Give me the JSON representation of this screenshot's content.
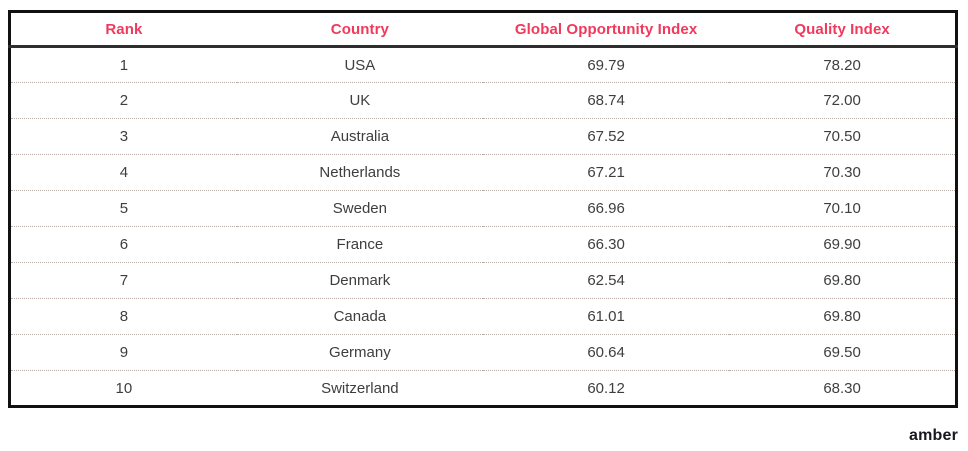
{
  "chart_data": {
    "type": "table",
    "title": "",
    "columns": [
      "Rank",
      "Country",
      "Global Opportunity Index",
      "Quality Index"
    ],
    "rows": [
      [
        "1",
        "USA",
        "69.79",
        "78.20"
      ],
      [
        "2",
        "UK",
        "68.74",
        "72.00"
      ],
      [
        "3",
        "Australia",
        "67.52",
        "70.50"
      ],
      [
        "4",
        "Netherlands",
        "67.21",
        "70.30"
      ],
      [
        "5",
        "Sweden",
        "66.96",
        "70.10"
      ],
      [
        "6",
        "France",
        "66.30",
        "69.90"
      ],
      [
        "7",
        "Denmark",
        "62.54",
        "69.80"
      ],
      [
        "8",
        "Canada",
        "61.01",
        "69.80"
      ],
      [
        "9",
        "Germany",
        "60.64",
        "69.50"
      ],
      [
        "10",
        "Switzerland",
        "60.12",
        "68.30"
      ]
    ]
  },
  "table": {
    "headers": [
      "Rank",
      "Country",
      "Global Opportunity Index",
      "Quality Index"
    ],
    "rows": [
      [
        "1",
        "USA",
        "69.79",
        "78.20"
      ],
      [
        "2",
        "UK",
        "68.74",
        "72.00"
      ],
      [
        "3",
        "Australia",
        "67.52",
        "70.50"
      ],
      [
        "4",
        "Netherlands",
        "67.21",
        "70.30"
      ],
      [
        "5",
        "Sweden",
        "66.96",
        "70.10"
      ],
      [
        "6",
        "France",
        "66.30",
        "69.90"
      ],
      [
        "7",
        "Denmark",
        "62.54",
        "69.80"
      ],
      [
        "8",
        "Canada",
        "61.01",
        "69.80"
      ],
      [
        "9",
        "Germany",
        "60.64",
        "69.50"
      ],
      [
        "10",
        "Switzerland",
        "60.12",
        "68.30"
      ]
    ]
  },
  "branding": {
    "logo_text": "amber"
  },
  "colors": {
    "header_text": "#f1395c",
    "body_text": "#3e3e3e",
    "outer_border": "#111111",
    "header_rule": "#2e2e2e",
    "row_divider": "#b9adaa",
    "logo": "#17171d",
    "background": "#ffffff"
  }
}
